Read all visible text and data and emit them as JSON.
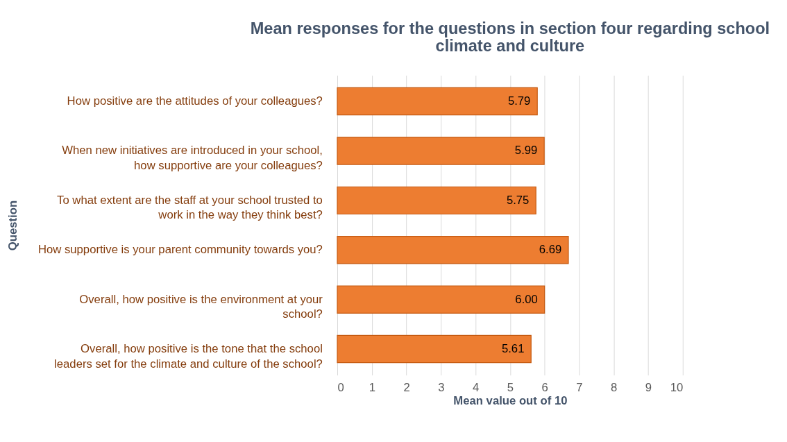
{
  "chart_data": {
    "type": "bar",
    "orientation": "horizontal",
    "title": "Mean responses for the questions in section four regarding school climate and culture",
    "xlabel": "Mean value out of 10",
    "ylabel": "Question",
    "categories": [
      "How positive are the attitudes of your colleagues?",
      "When new initiatives are introduced in your school, how supportive are your colleagues?",
      "To what extent are the staff at your school trusted to work in the way they think best?",
      "How supportive is your parent community towards you?",
      "Overall, how positive is the environment at your school?",
      "Overall, how positive is the tone that the school leaders set for the climate and culture of the school?"
    ],
    "values": [
      5.79,
      5.99,
      5.75,
      6.69,
      6.0,
      5.61
    ],
    "value_labels": [
      "5.79",
      "5.99",
      "5.75",
      "6.69",
      "6.00",
      "5.61"
    ],
    "color": "#ed7d31",
    "xlim": [
      0,
      10
    ],
    "xticks": [
      0,
      1,
      2,
      3,
      4,
      5,
      6,
      7,
      8,
      9,
      10
    ],
    "grid": "x"
  }
}
